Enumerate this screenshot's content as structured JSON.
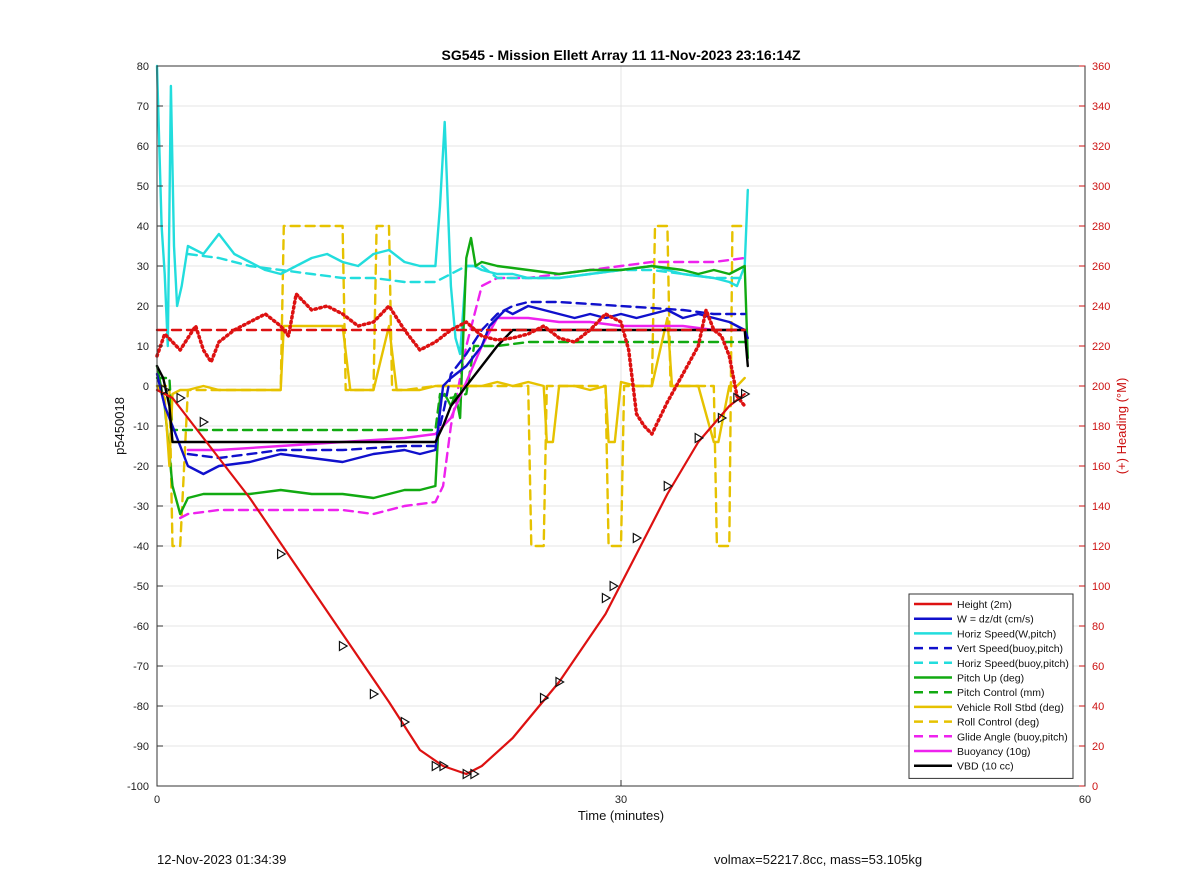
{
  "chart_data": {
    "type": "line",
    "title": "SG545 - Mission Ellett Array 11 11-Nov-2023 23:16:14Z",
    "xlabel": "Time (minutes)",
    "ylabel": "p5450018",
    "y2label": "(+) Heading (°M)",
    "xlim": [
      0,
      60
    ],
    "ylim": [
      -100,
      80
    ],
    "y2lim": [
      0,
      360
    ],
    "xticks": [
      "0",
      "30",
      "60"
    ],
    "yticks": [
      "-100",
      "-90",
      "-80",
      "-70",
      "-60",
      "-50",
      "-40",
      "-30",
      "-20",
      "-10",
      "0",
      "10",
      "20",
      "30",
      "40",
      "50",
      "60",
      "70",
      "80"
    ],
    "y2ticks": [
      "0",
      "20",
      "40",
      "60",
      "80",
      "100",
      "120",
      "140",
      "160",
      "180",
      "200",
      "220",
      "240",
      "260",
      "280",
      "300",
      "320",
      "340",
      "360"
    ],
    "grid": true,
    "legend_position": "bottom-right",
    "series": [
      {
        "name": "Height (2m)",
        "color": "#dd1111",
        "style": "solid",
        "x": [
          0,
          1,
          3,
          6,
          9,
          12,
          15,
          17,
          18.5,
          20,
          21,
          23,
          26,
          29,
          31,
          33,
          35,
          37,
          38
        ],
        "y": [
          -1,
          -3,
          -13,
          -28,
          -45,
          -62,
          -79,
          -91,
          -95,
          -97,
          -95,
          -88,
          -74,
          -57,
          -42,
          -27,
          -14,
          -5,
          -2
        ]
      },
      {
        "name": "W = dz/dt (cm/s)",
        "color": "#1010cc",
        "style": "solid",
        "x": [
          0,
          0.5,
          1,
          1.5,
          2,
          3,
          4,
          6,
          8,
          10,
          12,
          14,
          16,
          17,
          18,
          18.5,
          19,
          20,
          21,
          21.5,
          22,
          22.5,
          23,
          24,
          25,
          26,
          27,
          28,
          29,
          30,
          31,
          32,
          33,
          34,
          35,
          36,
          37,
          37.5,
          38,
          38.2
        ],
        "y": [
          3,
          -5,
          -10,
          -15,
          -20,
          -22,
          -20,
          -19,
          -17,
          -18,
          -19,
          -17,
          -16,
          -17,
          -16,
          0,
          2,
          5,
          10,
          15,
          17,
          19,
          18,
          20,
          19,
          18,
          17,
          18,
          17,
          18,
          17,
          18,
          19,
          17,
          18,
          17,
          16,
          15,
          14,
          12
        ]
      },
      {
        "name": "Horiz Speed(W,pitch)",
        "color": "#22dddd",
        "style": "solid",
        "x": [
          0,
          0.3,
          0.5,
          0.7,
          0.9,
          1.1,
          1.3,
          1.6,
          2,
          3,
          4,
          5,
          6,
          7,
          8,
          9,
          10,
          11,
          12,
          13,
          14,
          15,
          16,
          17,
          17.5,
          18,
          18.3,
          18.6,
          19,
          19.3,
          19.6,
          20,
          20.5,
          21,
          22,
          23,
          24,
          26,
          28,
          30,
          32,
          34,
          36,
          37,
          37.5,
          38,
          38.2
        ],
        "y": [
          80,
          40,
          28,
          10,
          75,
          35,
          20,
          25,
          35,
          33,
          38,
          33,
          31,
          29,
          28,
          30,
          32,
          33,
          31,
          30,
          33,
          34,
          31,
          30,
          30,
          30,
          45,
          66,
          25,
          12,
          8,
          30,
          30,
          29,
          28,
          28,
          27,
          27,
          28,
          29,
          30,
          28,
          27,
          26,
          25,
          30,
          49
        ]
      },
      {
        "name": "Vert Speed(buoy,pitch)",
        "color": "#1010cc",
        "style": "dashed",
        "x": [
          2,
          4,
          8,
          12,
          16,
          18,
          18.6,
          19,
          20,
          21,
          22,
          23,
          24,
          26,
          30,
          34,
          36,
          38
        ],
        "y": [
          -17,
          -18,
          -16,
          -16,
          -15,
          -15,
          -5,
          3,
          8,
          14,
          18,
          20,
          21,
          21,
          20,
          19,
          18,
          18
        ]
      },
      {
        "name": "Horiz Speed(buoy,pitch)",
        "color": "#22dddd",
        "style": "dashed",
        "x": [
          2,
          4,
          6,
          8,
          10,
          12,
          14,
          16,
          18,
          19,
          20,
          21,
          22,
          24,
          26,
          28,
          30,
          32,
          34,
          36,
          38
        ],
        "y": [
          33,
          32,
          30,
          29,
          28,
          27,
          27,
          26,
          26,
          28,
          30,
          30,
          27,
          27,
          27,
          28,
          29,
          29,
          28,
          27,
          27
        ]
      },
      {
        "name": "Pitch Up (deg)",
        "color": "#11aa11",
        "style": "solid",
        "x": [
          0,
          0.5,
          1,
          1.5,
          2,
          3,
          4,
          6,
          8,
          10,
          12,
          14,
          16,
          17,
          18,
          18.3,
          18.6,
          19,
          19.3,
          19.6,
          20,
          20.3,
          20.6,
          21,
          22,
          24,
          26,
          28,
          30,
          32,
          34,
          35,
          36,
          37,
          37.5,
          38,
          38.2
        ],
        "y": [
          5,
          -5,
          -25,
          -32,
          -28,
          -27,
          -27,
          -27,
          -26,
          -27,
          -27,
          -28,
          -26,
          -26,
          -25,
          -3,
          -2,
          -5,
          -2,
          -8,
          32,
          37,
          30,
          31,
          30,
          29,
          28,
          29,
          29,
          30,
          29,
          28,
          29,
          28,
          29,
          30,
          7
        ]
      },
      {
        "name": "Pitch Control (mm)",
        "color": "#11aa11",
        "style": "dashed",
        "x": [
          0,
          0.8,
          1,
          18,
          18.3,
          19,
          20,
          20.5,
          21,
          22,
          24,
          26,
          28,
          30,
          32,
          34,
          36,
          38
        ],
        "y": [
          2,
          2,
          -11,
          -11,
          -2,
          -3,
          -2,
          10,
          10,
          10,
          11,
          11,
          11,
          11,
          11,
          11,
          11,
          11
        ]
      },
      {
        "name": "Vehicle Roll Stbd (deg)",
        "color": "#e6c200",
        "style": "solid",
        "x": [
          0,
          0.5,
          0.8,
          1,
          1.5,
          2,
          3,
          4,
          5,
          6,
          7,
          8,
          8.2,
          9,
          10,
          11,
          12,
          12.5,
          13,
          14,
          15,
          15.5,
          16,
          17,
          18,
          19,
          20,
          21,
          22,
          23,
          24,
          25,
          25.2,
          25.6,
          26,
          27,
          28,
          29,
          29.2,
          29.6,
          30,
          31,
          32,
          33,
          33.3,
          34,
          35,
          36,
          36.3,
          37,
          37.5,
          38
        ],
        "y": [
          0,
          -3,
          -20,
          -2,
          -1,
          -1,
          0,
          -1,
          -1,
          -1,
          -1,
          -1,
          15,
          15,
          15,
          15,
          15,
          -1,
          -1,
          -1,
          15,
          -1,
          -1,
          -1,
          0,
          0,
          0,
          0,
          1,
          0,
          1,
          0,
          -14,
          -14,
          0,
          0,
          -1,
          0,
          -14,
          -14,
          1,
          0,
          0,
          17,
          0,
          0,
          0,
          -14,
          -14,
          0,
          0,
          2
        ]
      },
      {
        "name": "Roll Control (deg)",
        "color": "#e6c200",
        "style": "dashed",
        "x": [
          0,
          0.8,
          1,
          1.5,
          2,
          8,
          8.2,
          12,
          12.2,
          14,
          14.2,
          15,
          15.2,
          16,
          18,
          24,
          24.2,
          25,
          25.2,
          29,
          29.2,
          30,
          30.2,
          32,
          32.2,
          33,
          33.2,
          34,
          36,
          36.2,
          37,
          37.2,
          38
        ],
        "y": [
          0,
          0,
          -40,
          -40,
          -1,
          -1,
          40,
          40,
          -1,
          -1,
          40,
          40,
          -1,
          -1,
          0,
          0,
          -40,
          -40,
          0,
          0,
          -40,
          -40,
          0,
          0,
          40,
          40,
          0,
          0,
          0,
          -40,
          -40,
          40,
          40
        ]
      },
      {
        "name": "Glide Angle (buoy,pitch)",
        "color": "#ee22ee",
        "style": "dashed",
        "x": [
          1.5,
          2,
          4,
          8,
          12,
          14,
          16,
          18,
          18.5,
          19,
          20,
          21,
          22,
          24,
          26,
          28,
          30,
          32,
          34,
          36,
          38
        ],
        "y": [
          -33,
          -32,
          -31,
          -31,
          -31,
          -32,
          -30,
          -29,
          -25,
          -10,
          10,
          25,
          27,
          27,
          28,
          29,
          30,
          31,
          31,
          31,
          32
        ]
      },
      {
        "name": "Buoyancy (10g)",
        "color": "#ee22ee",
        "style": "solid",
        "x": [
          2,
          4,
          8,
          12,
          16,
          18,
          19,
          20,
          21,
          22,
          24,
          26,
          28,
          30,
          32,
          34,
          36,
          38
        ],
        "y": [
          -16,
          -16,
          -15,
          -14,
          -13,
          -12,
          -8,
          1,
          10,
          17,
          17,
          16,
          16,
          15,
          15,
          15,
          14,
          14
        ]
      },
      {
        "name": "VBD (10 cc)",
        "color": "#000000",
        "style": "solid",
        "x": [
          0,
          0.4,
          0.8,
          1,
          2,
          4,
          8,
          12,
          16,
          18,
          18.5,
          19,
          20,
          21,
          22,
          23,
          24,
          26,
          30,
          34,
          36,
          37,
          37.5,
          38,
          38.2
        ],
        "y": [
          5,
          2,
          -5,
          -14,
          -14,
          -14,
          -14,
          -14,
          -14,
          -14,
          -10,
          -5,
          0,
          5,
          10,
          14,
          14,
          14,
          14,
          14,
          14,
          14,
          14,
          14,
          5
        ]
      },
      {
        "name": "",
        "axis": "y2",
        "color": "#dd1111",
        "style": "dashed",
        "x": [
          0,
          38
        ],
        "y": [
          228,
          228
        ]
      },
      {
        "name": "",
        "axis": "y2",
        "color": "#dd1111",
        "style": "dotted",
        "x": [
          0,
          0.5,
          1,
          1.5,
          2,
          2.5,
          3,
          3.5,
          4,
          5,
          6,
          7,
          8,
          8.5,
          9,
          10,
          11,
          12,
          13,
          14,
          15,
          16,
          17,
          18,
          19,
          20,
          21,
          22,
          23,
          24,
          25,
          26,
          27,
          28,
          29,
          30,
          30.5,
          31,
          31.5,
          32,
          33,
          34,
          35,
          35.5,
          36,
          36.5,
          37,
          37.5,
          38
        ],
        "y": [
          215,
          226,
          222,
          218,
          224,
          230,
          218,
          212,
          222,
          228,
          232,
          236,
          230,
          225,
          246,
          238,
          240,
          236,
          230,
          232,
          240,
          228,
          218,
          222,
          228,
          232,
          225,
          223,
          224,
          226,
          230,
          224,
          222,
          228,
          236,
          232,
          218,
          186,
          180,
          176,
          192,
          206,
          220,
          238,
          228,
          225,
          215,
          195,
          190
        ]
      }
    ],
    "markers": {
      "symbol": "triangle",
      "x": [
        0.5,
        1.5,
        3,
        8,
        12,
        14,
        16,
        18,
        18.5,
        20,
        20.5,
        25,
        26,
        29,
        29.5,
        31,
        33,
        35,
        36.5,
        37.5,
        38
      ],
      "y": [
        -1,
        -3,
        -9,
        -42,
        -65,
        -77,
        -84,
        -95,
        -95,
        -97,
        -97,
        -78,
        -74,
        -53,
        -50,
        -38,
        -25,
        -13,
        -8,
        -3,
        -2
      ]
    }
  },
  "footer": {
    "left": "12-Nov-2023 01:34:39",
    "right": "volmax=52217.8cc, mass=53.105kg"
  }
}
